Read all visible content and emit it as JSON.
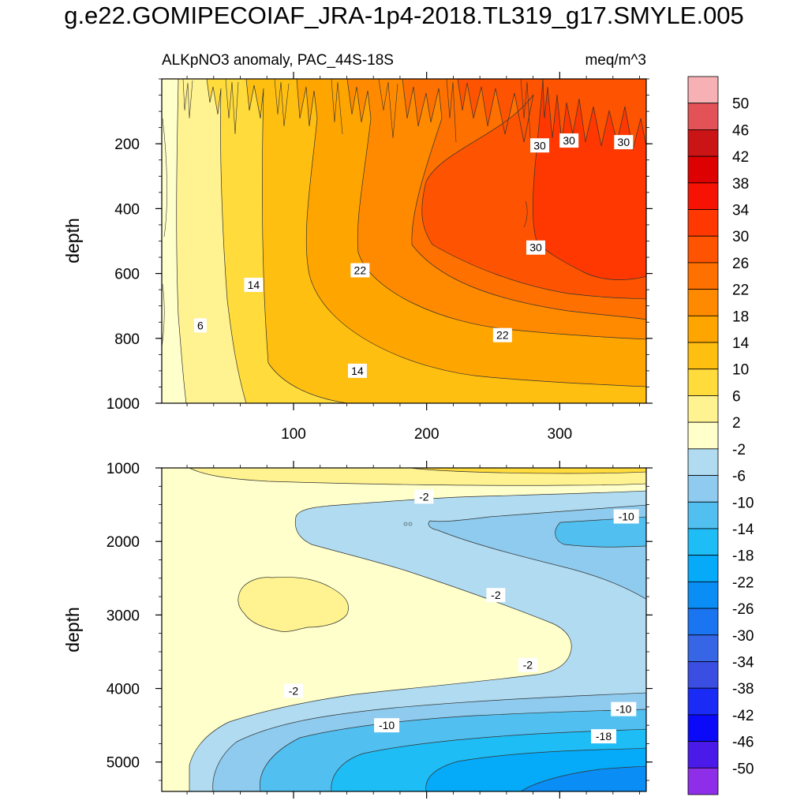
{
  "title": "g.e22.GOMIPECOIAF_JRA-1p4-2018.TL319_g17.SMYLE.005",
  "chart_data": [
    {
      "panel": "upper",
      "type": "contour",
      "variable": "ALKpNO3 anomaly, PAC_44S-18S",
      "units": "meq/m^3",
      "xlim": [
        1,
        365
      ],
      "ylim": [
        0,
        1000
      ],
      "y_inverted": true,
      "xlabel": "",
      "ylabel": "depth",
      "x_ticks": [
        100,
        200,
        300
      ],
      "x_tick_labels": [
        "100",
        "200",
        "300"
      ],
      "y_ticks": [
        200,
        400,
        600,
        800,
        1000
      ],
      "y_tick_labels": [
        "200",
        "400",
        "600",
        "800",
        "1000"
      ],
      "x_ticks_labeled_below": true,
      "contour_labels": [
        {
          "text": "6",
          "x": 30,
          "y": 760
        },
        {
          "text": "14",
          "x": 70,
          "y": 635
        },
        {
          "text": "22",
          "x": 150,
          "y": 590
        },
        {
          "text": "22",
          "x": 257,
          "y": 790
        },
        {
          "text": "14",
          "x": 148,
          "y": 900
        },
        {
          "text": "30",
          "x": 282,
          "y": 520
        },
        {
          "text": "30",
          "x": 285,
          "y": 205
        },
        {
          "text": "30",
          "x": 307,
          "y": 190
        },
        {
          "text": "30",
          "x": 348,
          "y": 195
        }
      ]
    },
    {
      "panel": "lower",
      "type": "contour",
      "xlim": [
        1,
        365
      ],
      "ylim": [
        1000,
        5400
      ],
      "y_inverted": true,
      "xlabel": "",
      "ylabel": "depth",
      "x_ticks": [
        100,
        200,
        300
      ],
      "y_ticks": [
        1000,
        2000,
        3000,
        4000,
        5000
      ],
      "y_tick_labels": [
        "1000",
        "2000",
        "3000",
        "4000",
        "5000"
      ],
      "contour_labels": [
        {
          "text": "-2",
          "x": 198,
          "y": 1390
        },
        {
          "text": "-10",
          "x": 350,
          "y": 1660
        },
        {
          "text": "-2",
          "x": 252,
          "y": 2730
        },
        {
          "text": "-2",
          "x": 276,
          "y": 3680
        },
        {
          "text": "-2",
          "x": 100,
          "y": 4030
        },
        {
          "text": "-10",
          "x": 170,
          "y": 4500
        },
        {
          "text": "-10",
          "x": 348,
          "y": 4280
        },
        {
          "text": "-18",
          "x": 333,
          "y": 4650
        }
      ]
    }
  ],
  "colorbar": {
    "labels": [
      "50",
      "46",
      "42",
      "38",
      "34",
      "30",
      "26",
      "22",
      "18",
      "14",
      "10",
      "6",
      "2",
      "-2",
      "-6",
      "-10",
      "-14",
      "-18",
      "-22",
      "-26",
      "-30",
      "-34",
      "-38",
      "-42",
      "-46",
      "-50"
    ],
    "colors": [
      "#f7b1b4",
      "#e25256",
      "#cb1415",
      "#dd0101",
      "#f61303",
      "#fe3800",
      "#fe5300",
      "#fe7000",
      "#ff8a00",
      "#ffa500",
      "#ffbf10",
      "#ffdb3b",
      "#fff290",
      "#ffffcb",
      "#b0dbf1",
      "#8ecbee",
      "#51bff0",
      "#1fbdf6",
      "#05aaf8",
      "#0a8ef5",
      "#1b74f0",
      "#3666e6",
      "#3a4ee2",
      "#1a2bf6",
      "#0a0af9",
      "#4a1ae9",
      "#8e2ee8"
    ]
  }
}
